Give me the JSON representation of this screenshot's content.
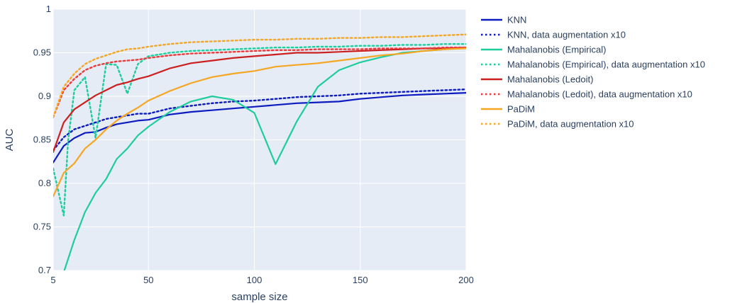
{
  "chart_data": {
    "type": "line",
    "title": "",
    "xlabel": "sample size",
    "ylabel": "AUC",
    "xlim": [
      5,
      200
    ],
    "ylim": [
      0.7,
      1.0
    ],
    "x_ticks": [
      5,
      50,
      100,
      150,
      200
    ],
    "y_ticks": [
      0.7,
      0.75,
      0.8,
      0.85,
      0.9,
      0.95,
      1
    ],
    "x_tick_labels": [
      "5",
      "50",
      "100",
      "150",
      "200"
    ],
    "y_tick_labels": [
      "0.7",
      "0.75",
      "0.8",
      "0.85",
      "0.9",
      "0.95",
      "1"
    ],
    "grid": true,
    "plot_background": "#e5ecf6",
    "legend_position": "right",
    "series": [
      {
        "name": "KNN",
        "color": "#0d1bbf",
        "dash": "solid",
        "x": [
          5,
          10,
          15,
          20,
          25,
          30,
          35,
          40,
          45,
          50,
          60,
          70,
          80,
          90,
          100,
          110,
          120,
          130,
          140,
          150,
          160,
          170,
          180,
          190,
          200
        ],
        "y": [
          0.824,
          0.843,
          0.852,
          0.858,
          0.859,
          0.864,
          0.868,
          0.87,
          0.872,
          0.873,
          0.879,
          0.882,
          0.884,
          0.886,
          0.888,
          0.89,
          0.892,
          0.893,
          0.894,
          0.897,
          0.899,
          0.901,
          0.902,
          0.903,
          0.904
        ]
      },
      {
        "name": "KNN, data augmentation x10",
        "color": "#0d1bbf",
        "dash": "dot",
        "x": [
          5,
          10,
          15,
          20,
          25,
          30,
          35,
          40,
          45,
          50,
          60,
          70,
          80,
          90,
          100,
          110,
          120,
          130,
          140,
          150,
          160,
          170,
          180,
          190,
          200
        ],
        "y": [
          0.838,
          0.853,
          0.862,
          0.866,
          0.87,
          0.874,
          0.876,
          0.878,
          0.88,
          0.88,
          0.886,
          0.889,
          0.892,
          0.894,
          0.895,
          0.897,
          0.899,
          0.9,
          0.901,
          0.903,
          0.904,
          0.905,
          0.906,
          0.907,
          0.908
        ]
      },
      {
        "name": "Mahalanobis (Empirical)",
        "color": "#1fcc9c",
        "dash": "solid",
        "x": [
          5,
          10,
          15,
          20,
          25,
          30,
          35,
          40,
          45,
          50,
          60,
          70,
          80,
          90,
          100,
          110,
          120,
          130,
          140,
          150,
          160,
          170,
          180,
          190,
          200
        ],
        "y": [
          0.652,
          0.698,
          0.735,
          0.767,
          0.789,
          0.805,
          0.828,
          0.84,
          0.855,
          0.865,
          0.882,
          0.894,
          0.9,
          0.896,
          0.881,
          0.822,
          0.871,
          0.911,
          0.93,
          0.939,
          0.945,
          0.95,
          0.952,
          0.954,
          0.956
        ]
      },
      {
        "name": "Mahalanobis (Empirical), data augmentation x10",
        "color": "#1fcc9c",
        "dash": "dot",
        "x": [
          5,
          10,
          12,
          15,
          20,
          25,
          30,
          35,
          40,
          45,
          50,
          60,
          70,
          80,
          90,
          100,
          110,
          120,
          130,
          140,
          150,
          160,
          170,
          180,
          190,
          200
        ],
        "y": [
          0.817,
          0.763,
          0.848,
          0.907,
          0.922,
          0.852,
          0.937,
          0.936,
          0.903,
          0.937,
          0.946,
          0.95,
          0.952,
          0.953,
          0.954,
          0.955,
          0.956,
          0.956,
          0.957,
          0.957,
          0.958,
          0.958,
          0.959,
          0.959,
          0.96,
          0.96
        ]
      },
      {
        "name": "Mahalanobis (Ledoit)",
        "color": "#cc1f1f",
        "dash": "solid",
        "x": [
          5,
          10,
          15,
          20,
          25,
          30,
          35,
          40,
          45,
          50,
          60,
          70,
          80,
          90,
          100,
          110,
          120,
          130,
          140,
          150,
          160,
          170,
          180,
          190,
          200
        ],
        "y": [
          0.836,
          0.87,
          0.885,
          0.893,
          0.901,
          0.907,
          0.913,
          0.916,
          0.92,
          0.923,
          0.932,
          0.938,
          0.941,
          0.944,
          0.946,
          0.948,
          0.95,
          0.95,
          0.951,
          0.952,
          0.953,
          0.954,
          0.955,
          0.955,
          0.956
        ]
      },
      {
        "name": "Mahalanobis (Ledoit), data augmentation x10",
        "color": "#e83b3b",
        "dash": "dot",
        "x": [
          5,
          10,
          15,
          20,
          25,
          30,
          35,
          40,
          45,
          50,
          60,
          70,
          80,
          90,
          100,
          110,
          120,
          130,
          140,
          150,
          160,
          170,
          180,
          190,
          200
        ],
        "y": [
          0.876,
          0.907,
          0.92,
          0.93,
          0.935,
          0.938,
          0.94,
          0.941,
          0.942,
          0.944,
          0.947,
          0.949,
          0.95,
          0.951,
          0.952,
          0.953,
          0.953,
          0.954,
          0.954,
          0.954,
          0.955,
          0.955,
          0.955,
          0.956,
          0.956
        ]
      },
      {
        "name": "PaDiM",
        "color": "#f5a623",
        "dash": "solid",
        "x": [
          5,
          10,
          15,
          20,
          25,
          30,
          35,
          40,
          45,
          50,
          60,
          70,
          80,
          90,
          100,
          110,
          120,
          130,
          140,
          150,
          160,
          170,
          180,
          190,
          200
        ],
        "y": [
          0.785,
          0.812,
          0.823,
          0.84,
          0.85,
          0.862,
          0.872,
          0.88,
          0.887,
          0.895,
          0.906,
          0.915,
          0.922,
          0.926,
          0.929,
          0.934,
          0.936,
          0.938,
          0.941,
          0.944,
          0.947,
          0.949,
          0.952,
          0.954,
          0.955
        ]
      },
      {
        "name": "PaDiM, data augmentation x10",
        "color": "#f5a623",
        "dash": "dot",
        "x": [
          5,
          10,
          15,
          20,
          25,
          30,
          35,
          40,
          45,
          50,
          60,
          70,
          80,
          90,
          100,
          110,
          120,
          130,
          140,
          150,
          160,
          170,
          180,
          190,
          200
        ],
        "y": [
          0.876,
          0.911,
          0.926,
          0.937,
          0.943,
          0.947,
          0.951,
          0.954,
          0.955,
          0.957,
          0.96,
          0.962,
          0.963,
          0.964,
          0.965,
          0.965,
          0.966,
          0.966,
          0.967,
          0.967,
          0.968,
          0.968,
          0.969,
          0.97,
          0.971
        ]
      }
    ]
  }
}
